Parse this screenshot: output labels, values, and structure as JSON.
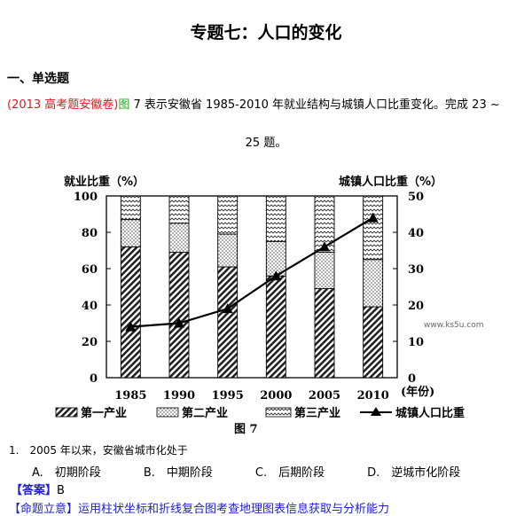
{
  "doc": {
    "title": "专题七：人口的变化",
    "section": "一、单选题",
    "intro_src": "(2013 高考题安徽卷)",
    "intro_fig": "图",
    "intro_text": " 7 表示安徽省 1985-2010 年就业结构与城镇人口比重变化。完成 23 ~",
    "intro_text2": "25 题。",
    "question": "1.　2005 年以来，安徽省城市化处于",
    "options": [
      "A.　初期阶段",
      "B.　中期阶段",
      "C.　后期阶段",
      "D.　逆城市化阶段"
    ],
    "answer_label": "【答案】",
    "answer_value": "B",
    "cut_line": "【命题立意】运用柱状坐标和折线复合图考查地理图表信息获取与分析能力"
  },
  "chart_data": {
    "type": "bar",
    "title": "",
    "ylabel_left": "就业比重（%）",
    "ylabel_right": "城镇人口比重（%）",
    "xlabel": "(年份)",
    "caption": "图 7",
    "watermark": "www.ks5u.com",
    "categories": [
      "1985",
      "1990",
      "1995",
      "2000",
      "2005",
      "2010"
    ],
    "ylim_left": [
      0,
      100
    ],
    "ylim_right": [
      0,
      50
    ],
    "left_ticks": [
      "0",
      "20",
      "40",
      "60",
      "80",
      "100"
    ],
    "right_ticks": [
      "0",
      "10",
      "20",
      "30",
      "40",
      "50"
    ],
    "series": [
      {
        "name": "第一产业",
        "values": [
          72,
          69,
          61,
          56,
          49,
          39
        ],
        "pattern": "hatch"
      },
      {
        "name": "第二产业",
        "values": [
          15,
          16,
          18,
          19,
          20,
          26
        ],
        "pattern": "dots"
      },
      {
        "name": "第三产业",
        "values": [
          13,
          15,
          21,
          25,
          31,
          35
        ],
        "pattern": "wave"
      }
    ],
    "line_series": {
      "name": "城镇人口比重",
      "values": [
        14,
        15,
        19,
        28,
        36,
        44
      ]
    },
    "grid": false,
    "legend_placement": "bottom"
  }
}
